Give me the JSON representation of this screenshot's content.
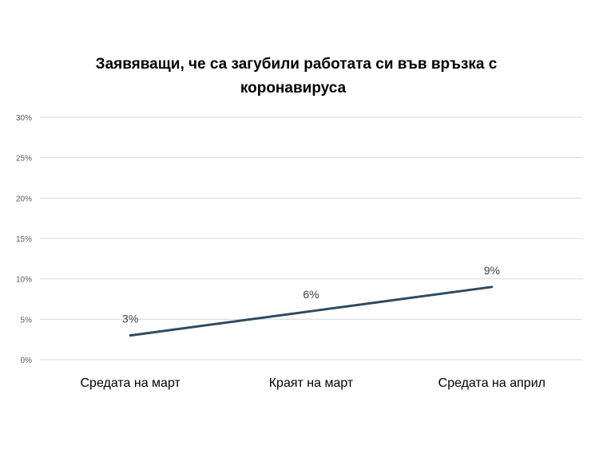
{
  "chart_data": {
    "type": "line",
    "title_lines": [
      "Заявяващи,  че са загубили работата  си във връзка с",
      "коронавируса"
    ],
    "categories": [
      "Средата на март",
      "Краят на март",
      "Средата на април"
    ],
    "series": [
      {
        "values": [
          3,
          6,
          9
        ],
        "data_labels": [
          "3%",
          "6%",
          "9%"
        ],
        "color": "#2e4a63"
      }
    ],
    "ylim": [
      0,
      30
    ],
    "y_ticks": [
      0,
      5,
      10,
      15,
      20,
      25,
      30
    ],
    "y_tick_labels": [
      "0%",
      "5%",
      "10%",
      "15%",
      "20%",
      "25%",
      "30%"
    ],
    "grid": true,
    "gridline_color": "#d9d9d9",
    "legend": "none"
  }
}
